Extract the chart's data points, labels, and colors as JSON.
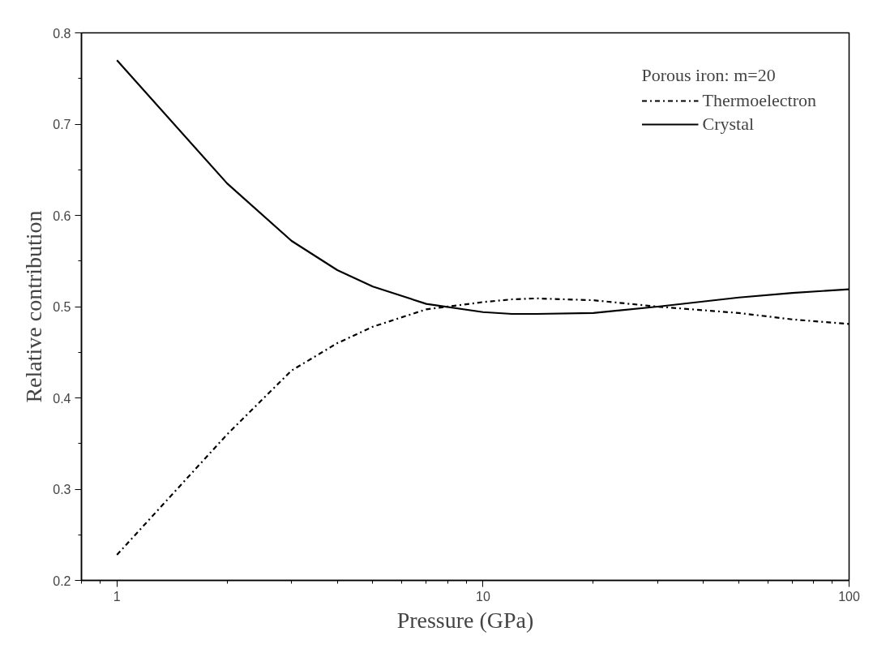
{
  "chart_data": {
    "type": "line",
    "xlabel": "Pressure (GPa)",
    "ylabel": "Relative contribution",
    "legend_title": "Porous iron: m=20",
    "x": [
      1,
      2,
      3,
      4,
      5,
      7,
      10,
      12,
      14,
      20,
      30,
      50,
      70,
      100
    ],
    "series": [
      {
        "name": "Thermoelectron",
        "color": "#000000",
        "line_style": "dashdot",
        "values": [
          0.228,
          0.36,
          0.43,
          0.46,
          0.478,
          0.497,
          0.505,
          0.508,
          0.509,
          0.507,
          0.5,
          0.493,
          0.486,
          0.481
        ]
      },
      {
        "name": "Crystal",
        "color": "#000000",
        "line_style": "solid",
        "values": [
          0.77,
          0.635,
          0.572,
          0.54,
          0.522,
          0.503,
          0.494,
          0.492,
          0.492,
          0.493,
          0.5,
          0.51,
          0.515,
          0.519
        ]
      }
    ],
    "log": "x",
    "xlim": [
      0.8,
      100
    ],
    "ylim": [
      0.2,
      0.8
    ],
    "xticks": [
      1,
      10,
      100
    ],
    "yticks": [
      0.2,
      0.3,
      0.4,
      0.5,
      0.6,
      0.7,
      0.8
    ],
    "grid": false,
    "legend": "top right",
    "marker": "none"
  }
}
